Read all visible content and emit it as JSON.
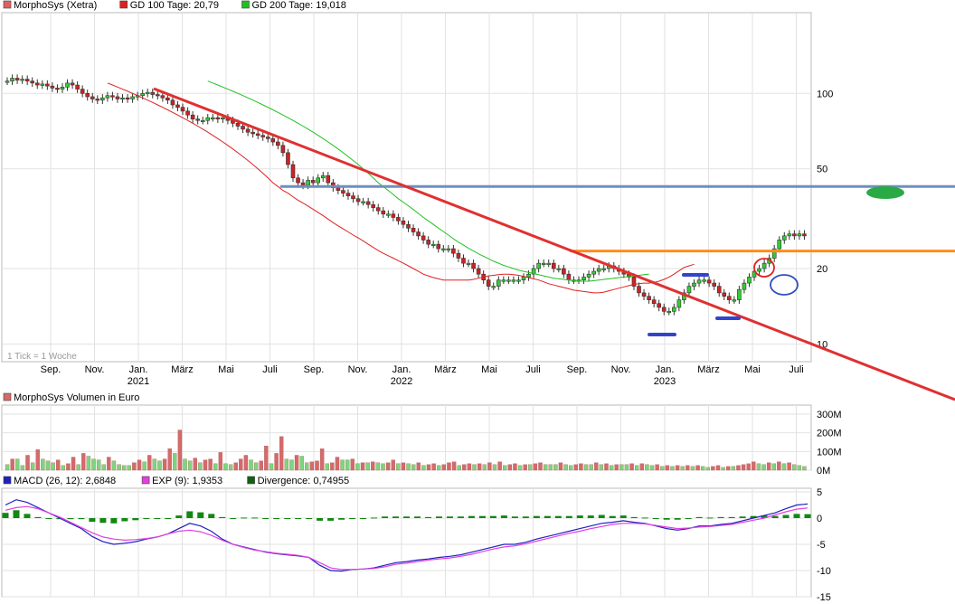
{
  "legend_main": [
    {
      "label": "MorphoSys (Xetra)",
      "color": "#e06060"
    },
    {
      "label": "GD 100 Tage: 20,79",
      "color": "#e02020"
    },
    {
      "label": "GD 200 Tage: 19,018",
      "color": "#20c020"
    }
  ],
  "legend_volume": [
    {
      "label": "MorphoSys Volumen in Euro",
      "color": "#d46a6a"
    }
  ],
  "legend_macd": [
    {
      "label": "MACD (26, 12): 2,6848",
      "color": "#2020c0"
    },
    {
      "label": "EXP (9): 1,9353",
      "color": "#e040e0"
    },
    {
      "label": "Divergence: 0,74955",
      "color": "#106010"
    }
  ],
  "tick_note": "1 Tick = 1 Woche",
  "chart_data": [
    {
      "type": "candlestick",
      "title": "",
      "yscale": "log",
      "ylim": [
        8.5,
        210
      ],
      "yticks": [
        "100",
        "50",
        "20",
        "10"
      ],
      "xlabels": [
        {
          "label": "Sep.",
          "year": ""
        },
        {
          "label": "Nov.",
          "year": ""
        },
        {
          "label": "Jan.",
          "year": "2021"
        },
        {
          "label": "März",
          "year": ""
        },
        {
          "label": "Mai",
          "year": ""
        },
        {
          "label": "Juli",
          "year": ""
        },
        {
          "label": "Sep.",
          "year": ""
        },
        {
          "label": "Nov.",
          "year": ""
        },
        {
          "label": "Jan.",
          "year": "2022"
        },
        {
          "label": "März",
          "year": ""
        },
        {
          "label": "Mai",
          "year": ""
        },
        {
          "label": "Juli",
          "year": ""
        },
        {
          "label": "Sep.",
          "year": ""
        },
        {
          "label": "Nov.",
          "year": ""
        },
        {
          "label": "Jan.",
          "year": "2023"
        },
        {
          "label": "März",
          "year": ""
        },
        {
          "label": "Mai",
          "year": ""
        },
        {
          "label": "Juli",
          "year": ""
        }
      ],
      "close_weekly": [
        112,
        115,
        113,
        114,
        112,
        110,
        108,
        109,
        107,
        105,
        104,
        106,
        110,
        108,
        104,
        100,
        97,
        95,
        94,
        96,
        98,
        97,
        95,
        96,
        95,
        97,
        98,
        100,
        101,
        99,
        98,
        96,
        94,
        90,
        88,
        85,
        82,
        79,
        78,
        78,
        80,
        80,
        79,
        80,
        78,
        76,
        74,
        72,
        70,
        69,
        68,
        67,
        66,
        64,
        62,
        58,
        52,
        46,
        44,
        43,
        45,
        44,
        46,
        47,
        44,
        42,
        41,
        40,
        39,
        38,
        37,
        37,
        36,
        35,
        34,
        33,
        33,
        32,
        31,
        30,
        29,
        28,
        27,
        26,
        25,
        25,
        24,
        24,
        24,
        23,
        22,
        21,
        21,
        20,
        19,
        18,
        17,
        17,
        18,
        18,
        18,
        18,
        18,
        18.5,
        19,
        20,
        21,
        21,
        21,
        20,
        20,
        19,
        18,
        18,
        18,
        18.5,
        19,
        19.5,
        20,
        20,
        20.5,
        20,
        19.5,
        19,
        18.5,
        17,
        16,
        15.5,
        15,
        14.5,
        14,
        13.5,
        13.5,
        14,
        15,
        16,
        17,
        17.5,
        18,
        18,
        17.5,
        17,
        16,
        15.5,
        15,
        15,
        16.5,
        17.5,
        18.5,
        19.5,
        20,
        21,
        22,
        24,
        26,
        27,
        27.5,
        27,
        27.5,
        27
      ],
      "series_lines": [
        {
          "name": "GD 100 Tage",
          "color": "#e02020",
          "values": [
            null,
            null,
            null,
            null,
            null,
            null,
            null,
            null,
            null,
            null,
            null,
            null,
            null,
            null,
            null,
            null,
            null,
            null,
            null,
            null,
            110,
            108,
            106,
            104,
            102,
            100,
            98,
            96,
            94,
            92,
            90,
            88,
            86,
            84,
            82,
            80,
            78,
            76,
            74,
            72,
            70,
            68,
            66,
            64,
            62,
            60,
            58,
            56,
            54,
            52,
            50,
            48,
            46,
            44,
            42.5,
            41,
            40,
            38.7,
            37.5,
            36.5,
            35.5,
            34.5,
            33.5,
            32.5,
            31.5,
            30.5,
            29.6,
            28.8,
            28,
            27.2,
            26.5,
            25.8,
            25,
            24.3,
            23.6,
            23,
            22.5,
            22,
            21.5,
            21,
            20.5,
            20,
            19.5,
            19,
            18.7,
            18.4,
            18.2,
            18,
            18,
            18,
            18,
            18,
            18,
            18.1,
            18.3,
            18.5,
            18.7,
            18.8,
            18.9,
            19,
            19,
            18.9,
            18.8,
            18.6,
            18.4,
            18.2,
            18,
            17.7,
            17.4,
            17.2,
            17,
            16.8,
            16.6,
            16.4,
            16.3,
            16.2,
            16.1,
            16,
            16,
            16.1,
            16.3,
            16.5,
            16.7,
            16.9,
            17.1,
            17.3,
            17.4,
            17.5,
            17.5,
            17.6,
            17.8,
            18.1,
            18.5,
            19,
            19.6,
            20.2,
            20.5,
            20.79
          ]
        },
        {
          "name": "GD 200 Tage",
          "color": "#20c020",
          "values": [
            null,
            null,
            null,
            null,
            null,
            null,
            null,
            null,
            null,
            null,
            null,
            null,
            null,
            null,
            null,
            null,
            null,
            null,
            null,
            null,
            null,
            null,
            null,
            null,
            null,
            null,
            null,
            null,
            null,
            null,
            null,
            null,
            null,
            null,
            null,
            null,
            null,
            null,
            null,
            null,
            112,
            110,
            108,
            106,
            104,
            102,
            100,
            98,
            96,
            94,
            92,
            90,
            88,
            86,
            84,
            82,
            80,
            78,
            76,
            74,
            72,
            70,
            68,
            66,
            64,
            62,
            60,
            58,
            56,
            54,
            52,
            50,
            48,
            46,
            44,
            42.5,
            41,
            39.5,
            38,
            36.8,
            35.6,
            34.4,
            33.2,
            32,
            31,
            30,
            29,
            28.1,
            27.2,
            26.3,
            25.5,
            24.8,
            24.1,
            23.5,
            22.9,
            22.4,
            21.9,
            21.4,
            21,
            20.6,
            20.3,
            20,
            19.7,
            19.5,
            19.3,
            19.1,
            18.9,
            18.7,
            18.5,
            18.3,
            18.2,
            18.1,
            18,
            17.9,
            17.8,
            17.8,
            17.8,
            17.9,
            18,
            18.1,
            18.2,
            18.3,
            18.4,
            18.5,
            18.6,
            18.7,
            18.8,
            18.9,
            19.018
          ]
        }
      ],
      "horizontal_lines": [
        {
          "value": 42.5,
          "color": "#6f8fbf"
        },
        {
          "value": 23.5,
          "color": "#ff8c1a"
        }
      ]
    },
    {
      "type": "bar",
      "title": "MorphoSys Volumen in Euro",
      "unit": "M",
      "ylim": [
        0,
        300
      ],
      "yticks": [
        "300M",
        "200M",
        "100M",
        "0M"
      ],
      "values": [
        30,
        60,
        60,
        25,
        80,
        40,
        110,
        60,
        50,
        40,
        55,
        25,
        35,
        70,
        30,
        90,
        75,
        60,
        55,
        30,
        70,
        50,
        30,
        25,
        25,
        40,
        55,
        45,
        80,
        60,
        50,
        60,
        115,
        90,
        215,
        60,
        50,
        65,
        40,
        55,
        60,
        35,
        95,
        35,
        30,
        40,
        60,
        80,
        55,
        40,
        50,
        130,
        35,
        90,
        180,
        60,
        55,
        80,
        75,
        40,
        45,
        50,
        115,
        35,
        40,
        70,
        55,
        55,
        60,
        35,
        40,
        40,
        45,
        40,
        35,
        40,
        55,
        35,
        40,
        35,
        30,
        40,
        25,
        30,
        35,
        25,
        30,
        40,
        45,
        25,
        30,
        35,
        30,
        35,
        30,
        40,
        30,
        45,
        25,
        30,
        35,
        25,
        30,
        30,
        35,
        40,
        30,
        30,
        30,
        40,
        30,
        25,
        30,
        35,
        30,
        30,
        40,
        30,
        35,
        25,
        30,
        30,
        30,
        35,
        25,
        35,
        30,
        25,
        30,
        20,
        25,
        20,
        25,
        20,
        25,
        20,
        25,
        20,
        15,
        20,
        25,
        15,
        20,
        20,
        25,
        30,
        35,
        45,
        35,
        30,
        40,
        35,
        45,
        35,
        40,
        30,
        25,
        20
      ]
    },
    {
      "type": "line",
      "title": "MACD",
      "ylim": [
        -15,
        5
      ],
      "yticks": [
        "5",
        "0",
        "-5",
        "-10",
        "-15"
      ],
      "series": [
        {
          "name": "MACD (26, 12)",
          "color": "#2020c0",
          "values": [
            2.5,
            3.5,
            3,
            2,
            1,
            0,
            -1,
            -2,
            -3.5,
            -4.5,
            -5,
            -4.8,
            -4.5,
            -4,
            -3.6,
            -3,
            -2,
            -1,
            -1.5,
            -2.5,
            -4,
            -5,
            -5.5,
            -6,
            -6.5,
            -6.8,
            -7,
            -7.2,
            -7.5,
            -9,
            -10,
            -10.1,
            -9.8,
            -9.7,
            -9.5,
            -9,
            -8.5,
            -8.3,
            -8,
            -7.8,
            -7.5,
            -7.3,
            -7,
            -6.5,
            -6,
            -5.5,
            -5,
            -5,
            -4.6,
            -4,
            -3.5,
            -3,
            -2.5,
            -2,
            -1.5,
            -1,
            -0.8,
            -0.5,
            -0.8,
            -1,
            -1.5,
            -2,
            -2.3,
            -2,
            -1.5,
            -1.5,
            -1.2,
            -1,
            -0.5,
            0,
            0.5,
            1,
            1.8,
            2.5,
            2.6848
          ]
        },
        {
          "name": "EXP (9)",
          "color": "#e040e0",
          "values": [
            1.5,
            2,
            2.2,
            1.8,
            1,
            0.2,
            -0.8,
            -1.8,
            -2.8,
            -3.6,
            -4,
            -4.2,
            -4.1,
            -3.9,
            -3.6,
            -3,
            -2.5,
            -2.3,
            -2.6,
            -3.3,
            -4.2,
            -5,
            -5.6,
            -6.1,
            -6.4,
            -6.7,
            -6.9,
            -7.1,
            -7.5,
            -8.5,
            -9.5,
            -9.8,
            -9.8,
            -9.7,
            -9.6,
            -9.3,
            -8.8,
            -8.6,
            -8.3,
            -8,
            -7.8,
            -7.6,
            -7.3,
            -6.9,
            -6.4,
            -5.9,
            -5.5,
            -5.3,
            -4.9,
            -4.4,
            -3.9,
            -3.4,
            -2.9,
            -2.5,
            -2,
            -1.6,
            -1.2,
            -1,
            -1,
            -1.1,
            -1.4,
            -1.7,
            -2,
            -1.9,
            -1.7,
            -1.6,
            -1.4,
            -1.2,
            -0.8,
            -0.4,
            0,
            0.6,
            1.2,
            1.7,
            1.9353
          ]
        }
      ]
    }
  ]
}
